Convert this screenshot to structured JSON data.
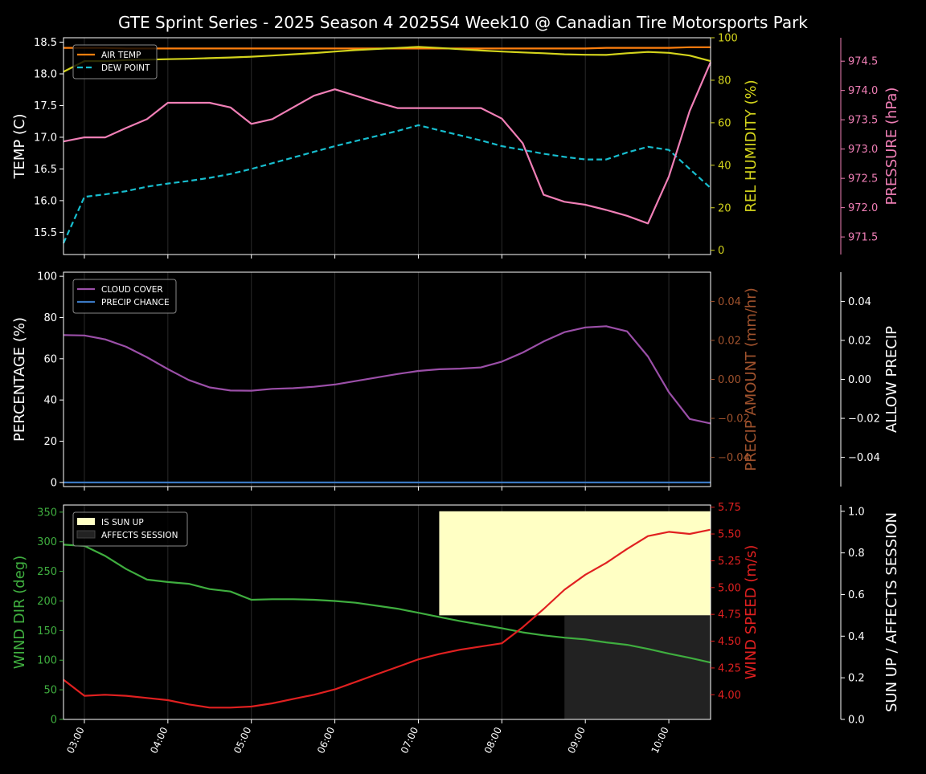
{
  "title": "GTE Sprint Series - 2025 Season 4 2025S4 Week10 @ Canadian Tire Motorsports Park",
  "colors": {
    "background": "#000000",
    "axis": "#ffffff",
    "air_temp": "#ff7f0e",
    "dew_point": "#17becf",
    "humidity": "#d4d41c",
    "pressure": "#f07fb6",
    "cloud": "#9b4fa8",
    "precip_chance": "#3b78c2",
    "precip_amount": "#a0522d",
    "wind_dir": "#3fae3f",
    "wind_speed": "#e02020",
    "sun_up": "#ffffc4",
    "affects_session": "#222222"
  },
  "chart_data": [
    {
      "type": "line",
      "panel": "weather",
      "x": [
        "02:45",
        "03:00",
        "03:15",
        "03:30",
        "03:45",
        "04:00",
        "04:15",
        "04:30",
        "04:45",
        "05:00",
        "05:15",
        "05:30",
        "05:45",
        "06:00",
        "06:15",
        "06:30",
        "06:45",
        "07:00",
        "07:15",
        "07:30",
        "07:45",
        "08:00",
        "08:15",
        "08:30",
        "08:45",
        "09:00",
        "09:15",
        "09:30",
        "09:45",
        "10:00",
        "10:15",
        "10:30"
      ],
      "xticks": [
        "03:00",
        "04:00",
        "05:00",
        "06:00",
        "07:00",
        "08:00",
        "09:00",
        "10:00"
      ],
      "axes": {
        "left": {
          "label": "TEMP (C)",
          "lim": [
            15.15,
            18.57
          ],
          "ticks": [
            "15.5",
            "16.0",
            "16.5",
            "17.0",
            "17.5",
            "18.0",
            "18.5"
          ]
        },
        "right": {
          "label": "REL HUMIDITY (%)",
          "lim": [
            -2,
            100
          ],
          "ticks": [
            "0",
            "20",
            "40",
            "60",
            "80",
            "100"
          ]
        },
        "right2": {
          "label": "PRESSURE (hPa)",
          "lim": [
            971.2,
            974.9
          ],
          "ticks": [
            "971.5",
            "972.0",
            "972.5",
            "973.0",
            "973.5",
            "974.0",
            "974.5"
          ]
        }
      },
      "legend": "top-left",
      "series": [
        {
          "name": "AIR TEMP",
          "axis": "left",
          "values": [
            18.41,
            18.41,
            18.41,
            18.4,
            18.4,
            18.4,
            18.4,
            18.4,
            18.4,
            18.4,
            18.4,
            18.4,
            18.4,
            18.4,
            18.4,
            18.4,
            18.4,
            18.4,
            18.4,
            18.4,
            18.4,
            18.4,
            18.4,
            18.4,
            18.4,
            18.4,
            18.41,
            18.41,
            18.41,
            18.41,
            18.42,
            18.42
          ]
        },
        {
          "name": "DEW POINT",
          "axis": "left",
          "dashed": true,
          "values": [
            15.33,
            16.06,
            16.1,
            16.15,
            16.22,
            16.27,
            16.31,
            16.36,
            16.42,
            16.5,
            16.59,
            16.68,
            16.77,
            16.86,
            16.94,
            17.02,
            17.1,
            17.19,
            17.11,
            17.03,
            16.95,
            16.86,
            16.8,
            16.74,
            16.69,
            16.65,
            16.65,
            16.76,
            16.85,
            16.8,
            16.5,
            16.2
          ]
        },
        {
          "name": "",
          "axis": "right",
          "values": [
            84,
            89,
            89,
            89.5,
            89.7,
            89.9,
            90.1,
            90.4,
            90.7,
            91.1,
            91.6,
            92.2,
            92.8,
            93.5,
            94.2,
            94.7,
            95.2,
            95.7,
            95.2,
            94.6,
            94.0,
            93.5,
            93.1,
            92.7,
            92.2,
            92.0,
            91.9,
            92.7,
            93.3,
            92.9,
            91.6,
            89.0
          ]
        },
        {
          "name": "",
          "axis": "right2",
          "values": [
            973.13,
            973.2,
            973.2,
            973.36,
            973.51,
            973.79,
            973.79,
            973.79,
            973.71,
            973.43,
            973.51,
            973.71,
            973.91,
            974.02,
            973.91,
            973.8,
            973.7,
            973.7,
            973.7,
            973.7,
            973.7,
            973.52,
            973.1,
            972.22,
            972.1,
            972.05,
            971.96,
            971.86,
            971.73,
            972.53,
            973.65,
            974.48
          ]
        }
      ]
    },
    {
      "type": "line",
      "panel": "clouds",
      "x": [
        "02:45",
        "03:00",
        "03:15",
        "03:30",
        "03:45",
        "04:00",
        "04:15",
        "04:30",
        "04:45",
        "05:00",
        "05:15",
        "05:30",
        "05:45",
        "06:00",
        "06:15",
        "06:30",
        "06:45",
        "07:00",
        "07:15",
        "07:30",
        "07:45",
        "08:00",
        "08:15",
        "08:30",
        "08:45",
        "09:00",
        "09:15",
        "09:30",
        "09:45",
        "10:00",
        "10:15",
        "10:30"
      ],
      "xticks": [
        "03:00",
        "04:00",
        "05:00",
        "06:00",
        "07:00",
        "08:00",
        "09:00",
        "10:00"
      ],
      "axes": {
        "left": {
          "label": "PERCENTAGE (%)",
          "lim": [
            -2,
            102
          ],
          "ticks": [
            "0",
            "20",
            "40",
            "60",
            "80",
            "100"
          ]
        },
        "right": {
          "label": "PRECIP AMOUNT (mm/hr)",
          "lim": [
            -0.055,
            0.055
          ],
          "ticks": [
            "−0.04",
            "−0.02",
            "0.00",
            "0.02",
            "0.04"
          ]
        },
        "right2": {
          "label": "ALLOW PRECIP",
          "lim": [
            -0.055,
            0.055
          ],
          "ticks": [
            "−0.04",
            "−0.02",
            "0.00",
            "0.02",
            "0.04"
          ]
        }
      },
      "legend": "top-left",
      "series": [
        {
          "name": "CLOUD COVER",
          "axis": "left",
          "values": [
            71.5,
            71.3,
            69.4,
            65.8,
            60.7,
            55.0,
            49.7,
            46.1,
            44.6,
            44.5,
            45.4,
            45.7,
            46.4,
            47.5,
            49.2,
            50.9,
            52.6,
            54.1,
            54.9,
            55.2,
            55.8,
            58.6,
            63.0,
            68.4,
            72.9,
            75.2,
            75.8,
            73.3,
            61.1,
            43.8,
            30.8,
            28.6
          ]
        },
        {
          "name": "PRECIP CHANCE",
          "axis": "left",
          "values": [
            0,
            0,
            0,
            0,
            0,
            0,
            0,
            0,
            0,
            0,
            0,
            0,
            0,
            0,
            0,
            0,
            0,
            0,
            0,
            0,
            0,
            0,
            0,
            0,
            0,
            0,
            0,
            0,
            0,
            0,
            0,
            0
          ]
        }
      ]
    },
    {
      "type": "line",
      "panel": "wind",
      "x": [
        "02:45",
        "03:00",
        "03:15",
        "03:30",
        "03:45",
        "04:00",
        "04:15",
        "04:30",
        "04:45",
        "05:00",
        "05:15",
        "05:30",
        "05:45",
        "06:00",
        "06:15",
        "06:30",
        "06:45",
        "07:00",
        "07:15",
        "07:30",
        "07:45",
        "08:00",
        "08:15",
        "08:30",
        "08:45",
        "09:00",
        "09:15",
        "09:30",
        "09:45",
        "10:00",
        "10:15",
        "10:30"
      ],
      "xticks": [
        "03:00",
        "04:00",
        "05:00",
        "06:00",
        "07:00",
        "08:00",
        "09:00",
        "10:00"
      ],
      "axes": {
        "left": {
          "label": "WIND DIR (deg)",
          "lim": [
            0,
            362
          ],
          "ticks": [
            "0",
            "50",
            "100",
            "150",
            "200",
            "250",
            "300",
            "350"
          ]
        },
        "right": {
          "label": "WIND SPEED (m/s)",
          "lim": [
            3.77,
            5.77
          ],
          "ticks": [
            "4.00",
            "4.25",
            "4.50",
            "4.75",
            "5.00",
            "5.25",
            "5.50",
            "5.75"
          ]
        },
        "right2": {
          "label": "SUN UP / AFFECTS SESSION",
          "lim": [
            0,
            1.03
          ],
          "ticks": [
            "0.0",
            "0.2",
            "0.4",
            "0.6",
            "0.8",
            "1.0"
          ]
        }
      },
      "legend": "top-left",
      "legend_entries": [
        "IS SUN UP",
        "AFFECTS SESSION"
      ],
      "regions": [
        {
          "name": "IS SUN UP",
          "axis": "right2",
          "x_start": "07:15",
          "x_end": "10:30",
          "y_range": [
            0.5,
            1.0
          ]
        },
        {
          "name": "AFFECTS SESSION",
          "axis": "right2",
          "x_start": "08:45",
          "x_end": "10:30",
          "y_range": [
            0,
            0.5
          ]
        }
      ],
      "series": [
        {
          "name": "",
          "axis": "left",
          "values": [
            295,
            293,
            276,
            254,
            236,
            232,
            229,
            220,
            216,
            202,
            203,
            203,
            202,
            200,
            197,
            192,
            187,
            180,
            173,
            166,
            160,
            154,
            147,
            142,
            138,
            135,
            130,
            126,
            119,
            111,
            104,
            96
          ]
        },
        {
          "name": "",
          "axis": "right",
          "values": [
            4.14,
            3.99,
            4.0,
            3.99,
            3.97,
            3.95,
            3.91,
            3.88,
            3.88,
            3.89,
            3.92,
            3.96,
            4.0,
            4.05,
            4.12,
            4.19,
            4.26,
            4.33,
            4.38,
            4.42,
            4.45,
            4.48,
            4.63,
            4.8,
            4.98,
            5.12,
            5.23,
            5.36,
            5.48,
            5.52,
            5.5,
            5.54
          ]
        }
      ]
    }
  ]
}
